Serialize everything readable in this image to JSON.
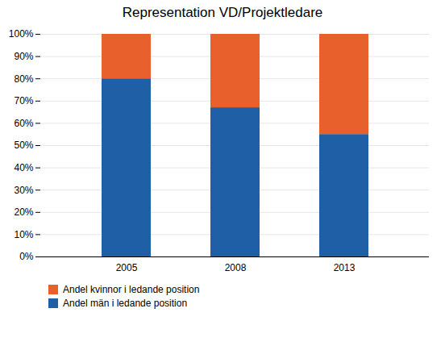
{
  "chart_data": {
    "type": "bar",
    "title": "Representation VD/Projektledare",
    "categories": [
      "2005",
      "2008",
      "2013"
    ],
    "series": [
      {
        "name": "Andel män i ledande position",
        "color": "#1F5FA6",
        "values": [
          0.8,
          0.67,
          0.55
        ]
      },
      {
        "name": "Andel kvinnor i ledande position",
        "color": "#E8612C",
        "values": [
          0.2,
          0.33,
          0.45
        ]
      }
    ],
    "stacked": true,
    "ylim": [
      0,
      1.0
    ],
    "yticks": [
      {
        "value": 0.0,
        "label": "0%"
      },
      {
        "value": 0.1,
        "label": "10%"
      },
      {
        "value": 0.2,
        "label": "20%"
      },
      {
        "value": 0.3,
        "label": "30%"
      },
      {
        "value": 0.4,
        "label": "40%"
      },
      {
        "value": 0.5,
        "label": "50%"
      },
      {
        "value": 0.6,
        "label": "60%"
      },
      {
        "value": 0.7,
        "label": "70%"
      },
      {
        "value": 0.8,
        "label": "80%"
      },
      {
        "value": 0.9,
        "label": "90%"
      },
      {
        "value": 1.0,
        "label": "100%"
      }
    ],
    "grid": true,
    "legend": "bottom"
  }
}
